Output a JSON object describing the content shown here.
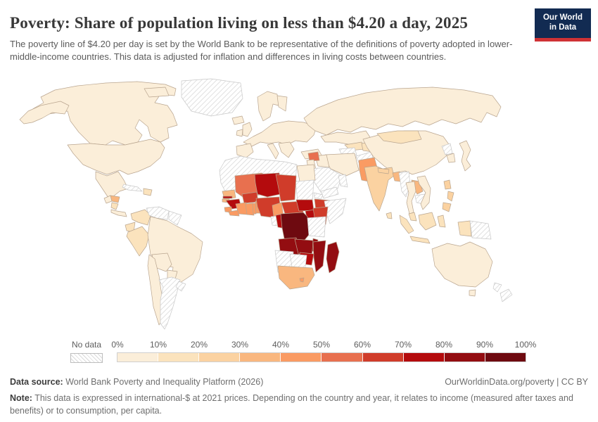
{
  "header": {
    "title": "Poverty: Share of population living on less than $4.20 a day, 2025",
    "subtitle": "The poverty line of $4.20 per day is set by the World Bank to be representative of the definitions of poverty adopted in lower-middle-income countries. This data is adjusted for inflation and differences in living costs between countries.",
    "logo_line1": "Our World",
    "logo_line2": "in Data",
    "logo_bg": "#122b52",
    "logo_accent": "#cf3235"
  },
  "legend": {
    "no_data_label": "No data",
    "ticks": [
      "0%",
      "10%",
      "20%",
      "30%",
      "40%",
      "50%",
      "60%",
      "70%",
      "80%",
      "90%",
      "100%"
    ],
    "colors": [
      "#fbeed9",
      "#fbe3bd",
      "#fbd2a1",
      "#f9b77f",
      "#fa9b63",
      "#e8704f",
      "#d03c2a",
      "#b40b0d",
      "#930d11",
      "#6e0a10"
    ]
  },
  "map": {
    "border_color": "#b9a58f",
    "no_data_border": "#c8c8c8",
    "regions": {
      "canada": 0,
      "usa": 0,
      "alaska": 0,
      "mexico": 0,
      "guatemala": 0,
      "honduras": 3,
      "nicaragua": 1,
      "costa-panama": 0,
      "cuba": "nd",
      "hispaniola": 1,
      "colombia": 1,
      "venezuela": "nd",
      "guianas": "nd",
      "ecuador": 1,
      "peru": 1,
      "brazil": 0,
      "bolivia": 0,
      "paraguay": 0,
      "chile": 0,
      "argentina": "nd",
      "uruguay": "nd",
      "greenland": "nd",
      "iceland": 0,
      "uk": 0,
      "ireland": 0,
      "scandinavia": 0,
      "finland": 0,
      "europe-main": 0,
      "iberia": 0,
      "italy": 0,
      "balkans": 0,
      "turkey": 0,
      "russia": 0,
      "kazakhstan": 0,
      "uzbekistan": 1,
      "turkmenistan": "nd",
      "kyrgyz-tajik": 1,
      "afghanistan": "nd",
      "iran": 0,
      "iraq": 0,
      "syria": 5,
      "jordan-israel": 0,
      "saudi": "nd",
      "yemen": "nd",
      "oman": "nd",
      "pakistan": 4,
      "india": 2,
      "nepal": 2,
      "sri-lanka": 1,
      "bangladesh": 3,
      "myanmar": "nd",
      "thailand": 0,
      "laos": 3,
      "cambodia": "nd",
      "vietnam": 0,
      "china": 0,
      "mongolia": 1,
      "north-korea": "nd",
      "south-korea": 0,
      "japan": 0,
      "philippines": 2,
      "malaysia": 1,
      "indonesia": 1,
      "png": "nd",
      "australia": 0,
      "new-zealand": "nd",
      "north-africa": "nd",
      "egypt": 0,
      "sudan": "nd",
      "eritrea": "nd",
      "ethiopia": 6,
      "somalia": "nd",
      "senegal": 3,
      "gambia": 7,
      "guinea-bissau": 3,
      "guinea": 7,
      "sierra-leone": 4,
      "liberia": 4,
      "mali": 5,
      "burkina": 6,
      "niger": 7,
      "ivory-coast": 4,
      "ghana": 4,
      "togo": 4,
      "benin": 4,
      "nigeria": 6,
      "chad": 6,
      "cameroon": 4,
      "car": 6,
      "south-sudan": 7,
      "uganda": 7,
      "kenya": 6,
      "drc": 9,
      "congo-rep": 7,
      "gabon": "nd",
      "tanzania": "nd",
      "angola": 8,
      "zambia": 8,
      "malawi": 8,
      "mozambique": 8,
      "zimbabwe": 7,
      "namibia": "nd",
      "botswana": "nd",
      "south-africa": 3,
      "lesotho": 4,
      "madagascar": 8
    }
  },
  "chart_data": {
    "type": "choropleth",
    "title": "Poverty: Share of population living on less than $4.20 a day, 2025",
    "unit": "% of population living below $4.20 a day",
    "year": 2025,
    "bins": [
      "0-10%",
      "10-20%",
      "20-30%",
      "30-40%",
      "40-50%",
      "50-60%",
      "60-70%",
      "70-80%",
      "80-90%",
      "90-100%",
      "No data"
    ],
    "legend_colors": [
      "#fbeed9",
      "#fbe3bd",
      "#fbd2a1",
      "#f9b77f",
      "#fa9b63",
      "#e8704f",
      "#d03c2a",
      "#b40b0d",
      "#930d11",
      "#6e0a10"
    ],
    "regions": [
      {
        "name": "Canada",
        "value": "0-10%"
      },
      {
        "name": "United States",
        "value": "0-10%"
      },
      {
        "name": "Mexico",
        "value": "0-10%"
      },
      {
        "name": "Guatemala",
        "value": "0-10%"
      },
      {
        "name": "Honduras",
        "value": "30-40%"
      },
      {
        "name": "Nicaragua",
        "value": "10-20%"
      },
      {
        "name": "Costa Rica & Panama",
        "value": "0-10%"
      },
      {
        "name": "Cuba",
        "value": "No data"
      },
      {
        "name": "Hispaniola (Haiti/Dom. Rep.)",
        "value": "10-20%"
      },
      {
        "name": "Colombia",
        "value": "10-20%"
      },
      {
        "name": "Venezuela",
        "value": "No data"
      },
      {
        "name": "Guyana & Suriname",
        "value": "No data"
      },
      {
        "name": "Ecuador",
        "value": "10-20%"
      },
      {
        "name": "Peru",
        "value": "10-20%"
      },
      {
        "name": "Brazil",
        "value": "0-10%"
      },
      {
        "name": "Bolivia",
        "value": "0-10%"
      },
      {
        "name": "Paraguay",
        "value": "0-10%"
      },
      {
        "name": "Chile",
        "value": "0-10%"
      },
      {
        "name": "Argentina",
        "value": "No data"
      },
      {
        "name": "Uruguay",
        "value": "No data"
      },
      {
        "name": "Greenland",
        "value": "No data"
      },
      {
        "name": "Europe (most countries)",
        "value": "0-10%"
      },
      {
        "name": "Turkey",
        "value": "0-10%"
      },
      {
        "name": "Russia",
        "value": "0-10%"
      },
      {
        "name": "Kazakhstan",
        "value": "0-10%"
      },
      {
        "name": "Uzbekistan",
        "value": "10-20%"
      },
      {
        "name": "Turkmenistan",
        "value": "No data"
      },
      {
        "name": "Kyrgyzstan & Tajikistan",
        "value": "10-20%"
      },
      {
        "name": "Afghanistan",
        "value": "No data"
      },
      {
        "name": "Iran",
        "value": "0-10%"
      },
      {
        "name": "Iraq",
        "value": "0-10%"
      },
      {
        "name": "Syria",
        "value": "50-60%"
      },
      {
        "name": "Saudi Arabia",
        "value": "No data"
      },
      {
        "name": "Yemen",
        "value": "No data"
      },
      {
        "name": "Oman",
        "value": "No data"
      },
      {
        "name": "Pakistan",
        "value": "40-50%"
      },
      {
        "name": "India",
        "value": "20-30%"
      },
      {
        "name": "Nepal",
        "value": "20-30%"
      },
      {
        "name": "Sri Lanka",
        "value": "10-20%"
      },
      {
        "name": "Bangladesh",
        "value": "30-40%"
      },
      {
        "name": "Myanmar",
        "value": "No data"
      },
      {
        "name": "Thailand",
        "value": "0-10%"
      },
      {
        "name": "Laos",
        "value": "30-40%"
      },
      {
        "name": "Cambodia",
        "value": "No data"
      },
      {
        "name": "Vietnam",
        "value": "0-10%"
      },
      {
        "name": "China",
        "value": "0-10%"
      },
      {
        "name": "Mongolia",
        "value": "10-20%"
      },
      {
        "name": "North Korea",
        "value": "No data"
      },
      {
        "name": "South Korea",
        "value": "0-10%"
      },
      {
        "name": "Japan",
        "value": "0-10%"
      },
      {
        "name": "Philippines",
        "value": "20-30%"
      },
      {
        "name": "Malaysia",
        "value": "10-20%"
      },
      {
        "name": "Indonesia",
        "value": "10-20%"
      },
      {
        "name": "Papua New Guinea",
        "value": "No data"
      },
      {
        "name": "Australia",
        "value": "0-10%"
      },
      {
        "name": "New Zealand",
        "value": "No data"
      },
      {
        "name": "Egypt",
        "value": "0-10%"
      },
      {
        "name": "Morocco/Algeria/Libya",
        "value": "No data"
      },
      {
        "name": "Mauritania",
        "value": "No data"
      },
      {
        "name": "Sudan",
        "value": "No data"
      },
      {
        "name": "Eritrea",
        "value": "No data"
      },
      {
        "name": "Ethiopia",
        "value": "60-70%"
      },
      {
        "name": "Somalia",
        "value": "No data"
      },
      {
        "name": "Senegal",
        "value": "30-40%"
      },
      {
        "name": "Gambia",
        "value": "70-80%"
      },
      {
        "name": "Guinea-Bissau",
        "value": "30-40%"
      },
      {
        "name": "Guinea",
        "value": "70-80%"
      },
      {
        "name": "Sierra Leone",
        "value": "40-50%"
      },
      {
        "name": "Liberia",
        "value": "40-50%"
      },
      {
        "name": "Mali",
        "value": "50-60%"
      },
      {
        "name": "Burkina Faso",
        "value": "60-70%"
      },
      {
        "name": "Niger",
        "value": "70-80%"
      },
      {
        "name": "Côte d'Ivoire",
        "value": "40-50%"
      },
      {
        "name": "Ghana",
        "value": "40-50%"
      },
      {
        "name": "Togo",
        "value": "40-50%"
      },
      {
        "name": "Benin",
        "value": "40-50%"
      },
      {
        "name": "Nigeria",
        "value": "60-70%"
      },
      {
        "name": "Chad",
        "value": "60-70%"
      },
      {
        "name": "Cameroon",
        "value": "40-50%"
      },
      {
        "name": "Central African Republic",
        "value": "60-70%"
      },
      {
        "name": "South Sudan",
        "value": "70-80%"
      },
      {
        "name": "Uganda",
        "value": "70-80%"
      },
      {
        "name": "Kenya",
        "value": "60-70%"
      },
      {
        "name": "Democratic Republic of Congo",
        "value": "90-100%"
      },
      {
        "name": "Republic of the Congo",
        "value": "70-80%"
      },
      {
        "name": "Gabon",
        "value": "No data"
      },
      {
        "name": "Tanzania",
        "value": "No data"
      },
      {
        "name": "Angola",
        "value": "80-90%"
      },
      {
        "name": "Zambia",
        "value": "80-90%"
      },
      {
        "name": "Malawi",
        "value": "80-90%"
      },
      {
        "name": "Mozambique",
        "value": "80-90%"
      },
      {
        "name": "Zimbabwe",
        "value": "70-80%"
      },
      {
        "name": "Namibia",
        "value": "No data"
      },
      {
        "name": "Botswana",
        "value": "No data"
      },
      {
        "name": "South Africa",
        "value": "30-40%"
      },
      {
        "name": "Lesotho",
        "value": "40-50%"
      },
      {
        "name": "Madagascar",
        "value": "80-90%"
      }
    ]
  },
  "footer": {
    "source_label": "Data source:",
    "source_text": " World Bank Poverty and Inequality Platform (2026)",
    "link_text": "OurWorldinData.org/poverty | CC BY",
    "note_label": "Note:",
    "note_text": " This data is expressed in international-$ at 2021 prices. Depending on the country and year, it relates to income (measured after taxes and benefits) or to consumption, per capita."
  }
}
